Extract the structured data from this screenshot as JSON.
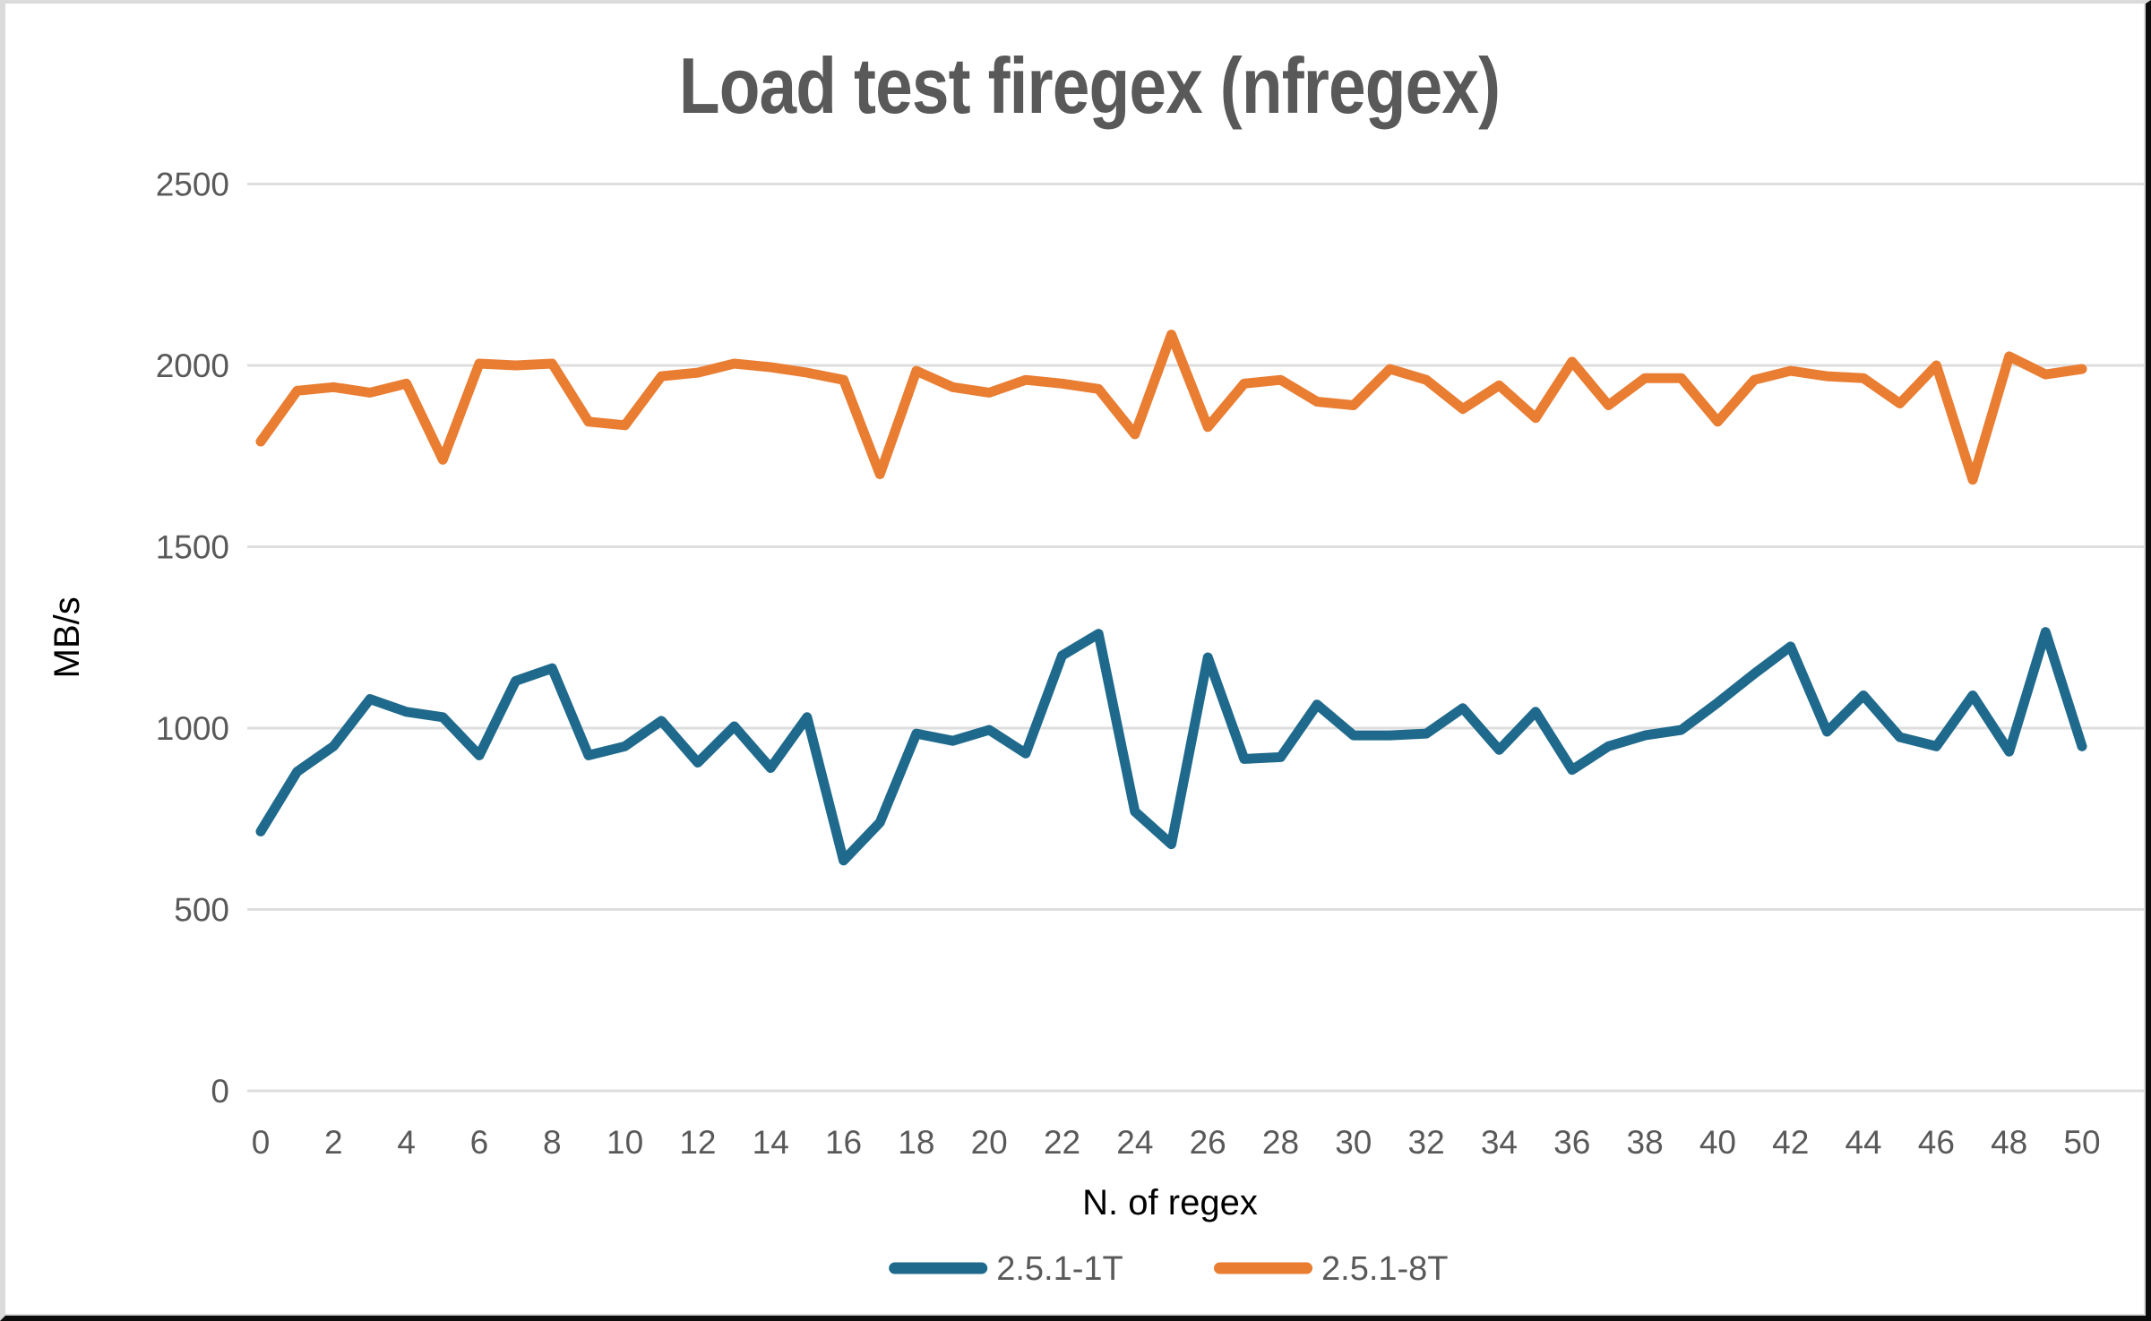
{
  "chart_data": {
    "type": "line",
    "title": "Load test firegex (nfregex)",
    "xlabel": "N. of regex",
    "ylabel": "MB/s",
    "x": [
      0,
      1,
      2,
      3,
      4,
      5,
      6,
      7,
      8,
      9,
      10,
      11,
      12,
      13,
      14,
      15,
      16,
      17,
      18,
      19,
      20,
      21,
      22,
      23,
      24,
      25,
      26,
      27,
      28,
      29,
      30,
      31,
      32,
      33,
      34,
      35,
      36,
      37,
      38,
      39,
      40,
      41,
      42,
      43,
      44,
      45,
      46,
      47,
      48,
      49,
      50
    ],
    "x_tick_labels": [
      "0",
      "2",
      "4",
      "6",
      "8",
      "10",
      "12",
      "14",
      "16",
      "18",
      "20",
      "22",
      "24",
      "26",
      "28",
      "30",
      "32",
      "34",
      "36",
      "38",
      "40",
      "42",
      "44",
      "46",
      "48",
      "50"
    ],
    "y_tick_labels": [
      "0",
      "500",
      "1000",
      "1500",
      "2000",
      "2500"
    ],
    "ylim": [
      0,
      2500
    ],
    "y_tick_step": 500,
    "grid": true,
    "legend_position": "bottom",
    "series": [
      {
        "name": "2.5.1-1T",
        "color": "#1F6A8C",
        "values": [
          715,
          880,
          950,
          1080,
          1045,
          1030,
          925,
          1130,
          1165,
          925,
          950,
          1020,
          905,
          1005,
          890,
          1030,
          635,
          740,
          985,
          965,
          995,
          930,
          1200,
          1260,
          770,
          680,
          1195,
          915,
          920,
          1065,
          980,
          980,
          985,
          1055,
          940,
          1045,
          885,
          950,
          980,
          995,
          1070,
          1150,
          1225,
          990,
          1090,
          975,
          950,
          1090,
          935,
          1265,
          950
        ]
      },
      {
        "name": "2.5.1-8T",
        "color": "#E97D32",
        "values": [
          1790,
          1930,
          1940,
          1925,
          1950,
          1740,
          2005,
          2000,
          2005,
          1845,
          1835,
          1970,
          1980,
          2005,
          1995,
          1980,
          1960,
          1700,
          1985,
          1940,
          1925,
          1960,
          1950,
          1935,
          1810,
          2085,
          1830,
          1950,
          1960,
          1900,
          1890,
          1990,
          1960,
          1880,
          1945,
          1855,
          2010,
          1890,
          1965,
          1965,
          1845,
          1960,
          1985,
          1970,
          1965,
          1895,
          2000,
          1685,
          2025,
          1975,
          1990
        ]
      }
    ]
  },
  "colors": {
    "title_text": "#595959",
    "tick_text": "#595959",
    "axis_title_text": "#000000",
    "gridline": "#dedede",
    "background": "#ffffff"
  }
}
